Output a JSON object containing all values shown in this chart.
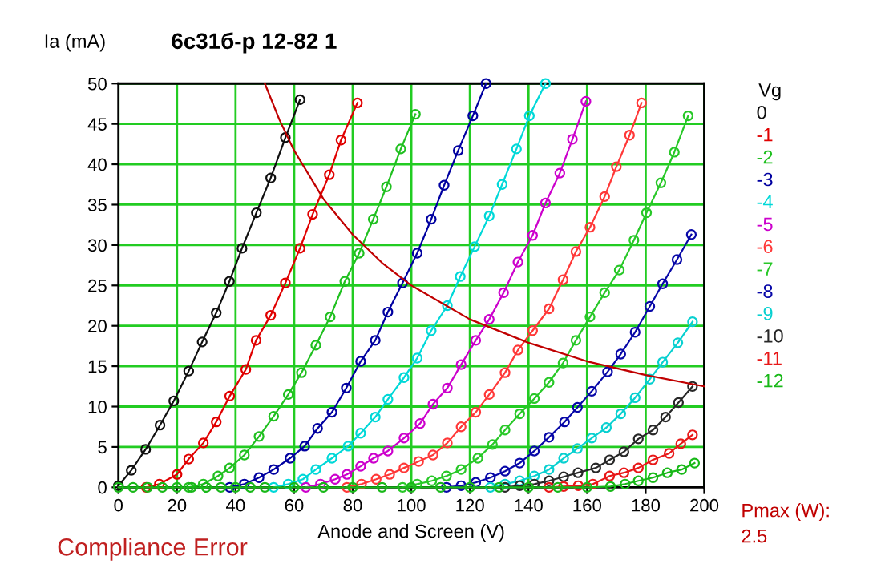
{
  "chart_data": {
    "type": "line",
    "title": "6c31б-p 12-82 1",
    "xlabel": "Anode and Screen (V)",
    "ylabel": "Ia (mA)",
    "legend_title": "Vg",
    "legend": "right",
    "grid": true,
    "marker": "circle",
    "xlim": [
      0,
      200
    ],
    "ylim": [
      0,
      50
    ],
    "xticks": [
      0,
      20,
      40,
      60,
      80,
      100,
      120,
      140,
      160,
      180,
      200
    ],
    "yticks": [
      0,
      5,
      10,
      15,
      20,
      25,
      30,
      35,
      40,
      45,
      50
    ],
    "annotations": [
      "Compliance Error",
      "Pmax (W):",
      "2.5"
    ],
    "series": [
      {
        "name": "0",
        "color": "#101010",
        "x": [
          0,
          4.4,
          9.3,
          14.2,
          18.9,
          24,
          28.6,
          33.4,
          37.9,
          42.2,
          47.1,
          52,
          57,
          62
        ],
        "values": [
          0.2,
          2.1,
          4.7,
          7.7,
          10.7,
          14.4,
          18,
          21.6,
          25.5,
          29.6,
          34,
          38.3,
          43.3,
          48
        ]
      },
      {
        "name": "-1",
        "color": "#e00000",
        "x": [
          9.5,
          14,
          20,
          24,
          29,
          33.4,
          38,
          43.5,
          47,
          52,
          57,
          62,
          66.3,
          72,
          76,
          81.6
        ],
        "values": [
          0,
          0.4,
          1.6,
          3.5,
          5.5,
          8.1,
          11.3,
          14.6,
          18.2,
          21.3,
          25.3,
          29.6,
          33.8,
          38.7,
          43,
          47.6
        ]
      },
      {
        "name": "-2",
        "color": "#20c020",
        "x": [
          24,
          29,
          34,
          38,
          43,
          48,
          53,
          58,
          62.5,
          67.4,
          72.3,
          77.3,
          82.2,
          87,
          91.5,
          96.4,
          101.4
        ],
        "values": [
          0,
          0.4,
          1.4,
          2.4,
          4,
          6.3,
          8.8,
          11.5,
          14.2,
          17.6,
          21.1,
          25.5,
          29,
          33.2,
          37.2,
          41.9,
          46.2
        ]
      },
      {
        "name": "-3",
        "color": "#0000a0",
        "x": [
          38,
          43,
          48,
          53,
          58.6,
          63.6,
          68,
          72.9,
          77.8,
          82.7,
          87.7,
          92,
          97,
          102,
          106.8,
          111.2,
          116,
          121,
          125.5
        ],
        "values": [
          0,
          0.4,
          1.2,
          2.2,
          3.6,
          5.1,
          7.3,
          9.3,
          12.3,
          15.6,
          18.2,
          21.7,
          25.3,
          29,
          33.2,
          37.4,
          41.7,
          46,
          50
        ]
      },
      {
        "name": "-4",
        "color": "#00d8d8",
        "x": [
          53,
          58,
          63,
          67.4,
          72.9,
          78.4,
          82.7,
          87.7,
          92,
          97.5,
          102,
          106.8,
          112.3,
          116.7,
          121.6,
          126.6,
          131,
          135.9,
          140.3,
          145.8
        ],
        "values": [
          0,
          0.4,
          1,
          2.2,
          3.6,
          5.1,
          6.7,
          8.7,
          10.9,
          13.6,
          16,
          19.4,
          22.5,
          26.1,
          29.8,
          33.6,
          37.5,
          41.9,
          46,
          50
        ]
      },
      {
        "name": "-5",
        "color": "#cc00cc",
        "x": [
          64,
          69,
          74,
          78,
          82.7,
          87.1,
          92,
          97.5,
          103,
          107.4,
          112.3,
          117,
          122,
          126.6,
          131.5,
          136.4,
          141.4,
          145.8,
          150.7,
          155,
          159.6
        ],
        "values": [
          0,
          0.4,
          1,
          1.6,
          2.6,
          3.6,
          4.5,
          6.1,
          7.9,
          10.3,
          12.3,
          15.2,
          18.2,
          20.8,
          24.1,
          27.9,
          31.2,
          35.2,
          38.9,
          43.1,
          47.8
        ]
      },
      {
        "name": "-6",
        "color": "#ff3838",
        "x": [
          78,
          83,
          88,
          92.6,
          97.5,
          102.5,
          107.4,
          112.3,
          117,
          122,
          126.6,
          132,
          136.4,
          141.4,
          147,
          151.8,
          156.2,
          161,
          166,
          170,
          174.5,
          178.6
        ],
        "values": [
          0,
          0.4,
          1,
          1.6,
          2.4,
          3.2,
          4,
          5.5,
          7.5,
          9.3,
          11.5,
          14.2,
          17,
          19.4,
          22.1,
          25.7,
          29.2,
          32.2,
          36,
          39.7,
          43.6,
          47.6
        ]
      },
      {
        "name": "-7",
        "color": "#28c828",
        "x": [
          97,
          102,
          107,
          112,
          117,
          122.7,
          127.7,
          132,
          137,
          142,
          147,
          151.8,
          156.2,
          161,
          166,
          171,
          176,
          180.3,
          185.2,
          189.8,
          194.5
        ],
        "values": [
          0,
          0.4,
          0.8,
          1.4,
          2.2,
          3.6,
          5.3,
          7.1,
          9.1,
          11,
          13,
          15.4,
          18.2,
          21.1,
          24.1,
          26.9,
          30.6,
          34,
          37.7,
          41.5,
          46
        ]
      },
      {
        "name": "-8",
        "color": "#0808a8",
        "x": [
          112,
          117,
          122,
          127,
          132,
          137,
          142,
          147,
          152.3,
          156.7,
          161.6,
          167,
          171.5,
          176.4,
          181.4,
          185.8,
          190.7,
          195.6
        ],
        "values": [
          0,
          0.2,
          0.6,
          1.2,
          2,
          3,
          4.5,
          6.2,
          8.1,
          9.9,
          11.9,
          14.3,
          16.5,
          19.2,
          22.4,
          25.2,
          28.2,
          31.3
        ]
      },
      {
        "name": "-9",
        "color": "#08d0d0",
        "x": [
          127,
          132,
          137,
          142,
          147,
          152,
          156.7,
          161.6,
          166.6,
          171.5,
          176.4,
          181.4,
          185.8,
          191,
          196
        ],
        "values": [
          0,
          0.4,
          0.8,
          1.4,
          2.2,
          3.6,
          4.8,
          6.1,
          7.4,
          9.1,
          11.1,
          13.4,
          15.5,
          17.9,
          20.5
        ]
      },
      {
        "name": "-10",
        "color": "#282828",
        "x": [
          132,
          137,
          142,
          147,
          152,
          156.9,
          163,
          167.7,
          172.6,
          177.5,
          182.5,
          186.8,
          191.2,
          196
        ],
        "values": [
          0,
          0.2,
          0.4,
          0.8,
          1.3,
          1.8,
          2.4,
          3.4,
          4.4,
          6,
          7.1,
          8.7,
          10.5,
          12.5
        ]
      },
      {
        "name": "-11",
        "color": "#e81818",
        "x": [
          147,
          152,
          157,
          162,
          167.7,
          172.6,
          177.5,
          182.5,
          188,
          192,
          196
        ],
        "values": [
          0,
          0.1,
          0.2,
          0.4,
          1.4,
          1.8,
          2.4,
          3.4,
          4.2,
          5.4,
          6.5
        ]
      },
      {
        "name": "-12",
        "color": "#18b818",
        "x": [
          0,
          5,
          10,
          15,
          20,
          25,
          30,
          35,
          40,
          45,
          50,
          60,
          70,
          80,
          90,
          100,
          110,
          120,
          130,
          140,
          150,
          160,
          168,
          173,
          177.5,
          182.5,
          187.4,
          192.3,
          196.7
        ],
        "values": [
          0,
          0,
          0,
          0,
          0,
          0,
          0,
          0,
          0,
          0,
          0,
          0,
          0,
          0,
          0,
          0,
          0,
          0,
          0,
          0,
          0,
          0,
          0.1,
          0.4,
          0.8,
          1.2,
          1.8,
          2.2,
          3
        ]
      },
      {
        "color": "#c00000",
        "marker": "none",
        "x": [
          50,
          55,
          60,
          70,
          80,
          90,
          100,
          120,
          140,
          160,
          180,
          200
        ],
        "values": [
          50,
          45.5,
          41.7,
          35.7,
          31.3,
          27.8,
          25,
          20.8,
          17.9,
          15.6,
          13.9,
          12.5
        ]
      }
    ]
  }
}
